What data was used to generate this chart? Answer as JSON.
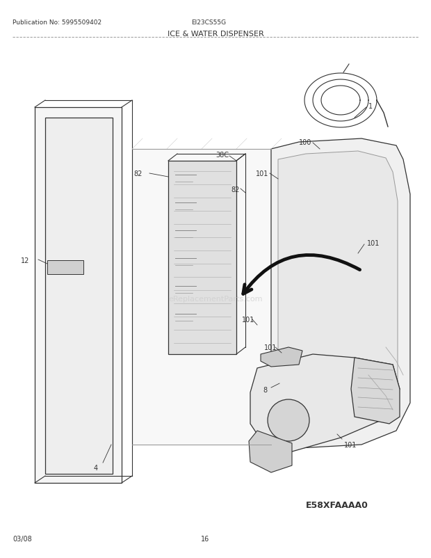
{
  "title": "ICE & WATER DISPENSER",
  "pub_no": "Publication No: 5995509402",
  "model": "EI23CS55G",
  "diagram_id": "E58XFAAAA0",
  "page": "16",
  "date": "03/08",
  "bg_color": "#ffffff",
  "lc": "#333333",
  "lc_thin": "#555555",
  "watermark": "eReplacementParts.com"
}
